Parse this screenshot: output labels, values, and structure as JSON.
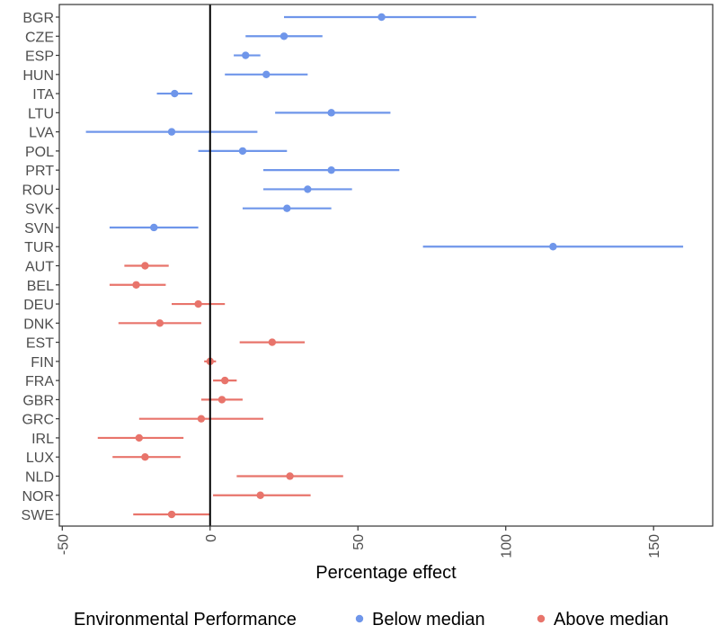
{
  "chart_data": {
    "type": "forest",
    "xlabel": "Percentage effect",
    "xlim": [
      -51,
      170
    ],
    "xticks": [
      -50,
      0,
      50,
      100,
      150
    ],
    "reference_line": 0,
    "grid": false,
    "legend": {
      "title": "Environmental Performance",
      "position": "bottom",
      "entries": [
        {
          "label": "Below median",
          "color": "#6f96ea"
        },
        {
          "label": "Above median",
          "color": "#e8746b"
        }
      ]
    },
    "rows": [
      {
        "country": "BGR",
        "group": 0,
        "estimate": 58,
        "lo": 25,
        "hi": 90
      },
      {
        "country": "CZE",
        "group": 0,
        "estimate": 25,
        "lo": 12,
        "hi": 38
      },
      {
        "country": "ESP",
        "group": 0,
        "estimate": 12,
        "lo": 8,
        "hi": 17
      },
      {
        "country": "HUN",
        "group": 0,
        "estimate": 19,
        "lo": 5,
        "hi": 33
      },
      {
        "country": "ITA",
        "group": 0,
        "estimate": -12,
        "lo": -18,
        "hi": -6
      },
      {
        "country": "LTU",
        "group": 0,
        "estimate": 41,
        "lo": 22,
        "hi": 61
      },
      {
        "country": "LVA",
        "group": 0,
        "estimate": -13,
        "lo": -42,
        "hi": 16
      },
      {
        "country": "POL",
        "group": 0,
        "estimate": 11,
        "lo": -4,
        "hi": 26
      },
      {
        "country": "PRT",
        "group": 0,
        "estimate": 41,
        "lo": 18,
        "hi": 64
      },
      {
        "country": "ROU",
        "group": 0,
        "estimate": 33,
        "lo": 18,
        "hi": 48
      },
      {
        "country": "SVK",
        "group": 0,
        "estimate": 26,
        "lo": 11,
        "hi": 41
      },
      {
        "country": "SVN",
        "group": 0,
        "estimate": -19,
        "lo": -34,
        "hi": -4
      },
      {
        "country": "TUR",
        "group": 0,
        "estimate": 116,
        "lo": 72,
        "hi": 160
      },
      {
        "country": "AUT",
        "group": 1,
        "estimate": -22,
        "lo": -29,
        "hi": -14
      },
      {
        "country": "BEL",
        "group": 1,
        "estimate": -25,
        "lo": -34,
        "hi": -15
      },
      {
        "country": "DEU",
        "group": 1,
        "estimate": -4,
        "lo": -13,
        "hi": 5
      },
      {
        "country": "DNK",
        "group": 1,
        "estimate": -17,
        "lo": -31,
        "hi": -3
      },
      {
        "country": "EST",
        "group": 1,
        "estimate": 21,
        "lo": 10,
        "hi": 32
      },
      {
        "country": "FIN",
        "group": 1,
        "estimate": 0,
        "lo": -2,
        "hi": 2
      },
      {
        "country": "FRA",
        "group": 1,
        "estimate": 5,
        "lo": 1,
        "hi": 9
      },
      {
        "country": "GBR",
        "group": 1,
        "estimate": 4,
        "lo": -3,
        "hi": 11
      },
      {
        "country": "GRC",
        "group": 1,
        "estimate": -3,
        "lo": -24,
        "hi": 18
      },
      {
        "country": "IRL",
        "group": 1,
        "estimate": -24,
        "lo": -38,
        "hi": -9
      },
      {
        "country": "LUX",
        "group": 1,
        "estimate": -22,
        "lo": -33,
        "hi": -10
      },
      {
        "country": "NLD",
        "group": 1,
        "estimate": 27,
        "lo": 9,
        "hi": 45
      },
      {
        "country": "NOR",
        "group": 1,
        "estimate": 17,
        "lo": 1,
        "hi": 34
      },
      {
        "country": "SWE",
        "group": 1,
        "estimate": -13,
        "lo": -26,
        "hi": 0
      }
    ]
  }
}
